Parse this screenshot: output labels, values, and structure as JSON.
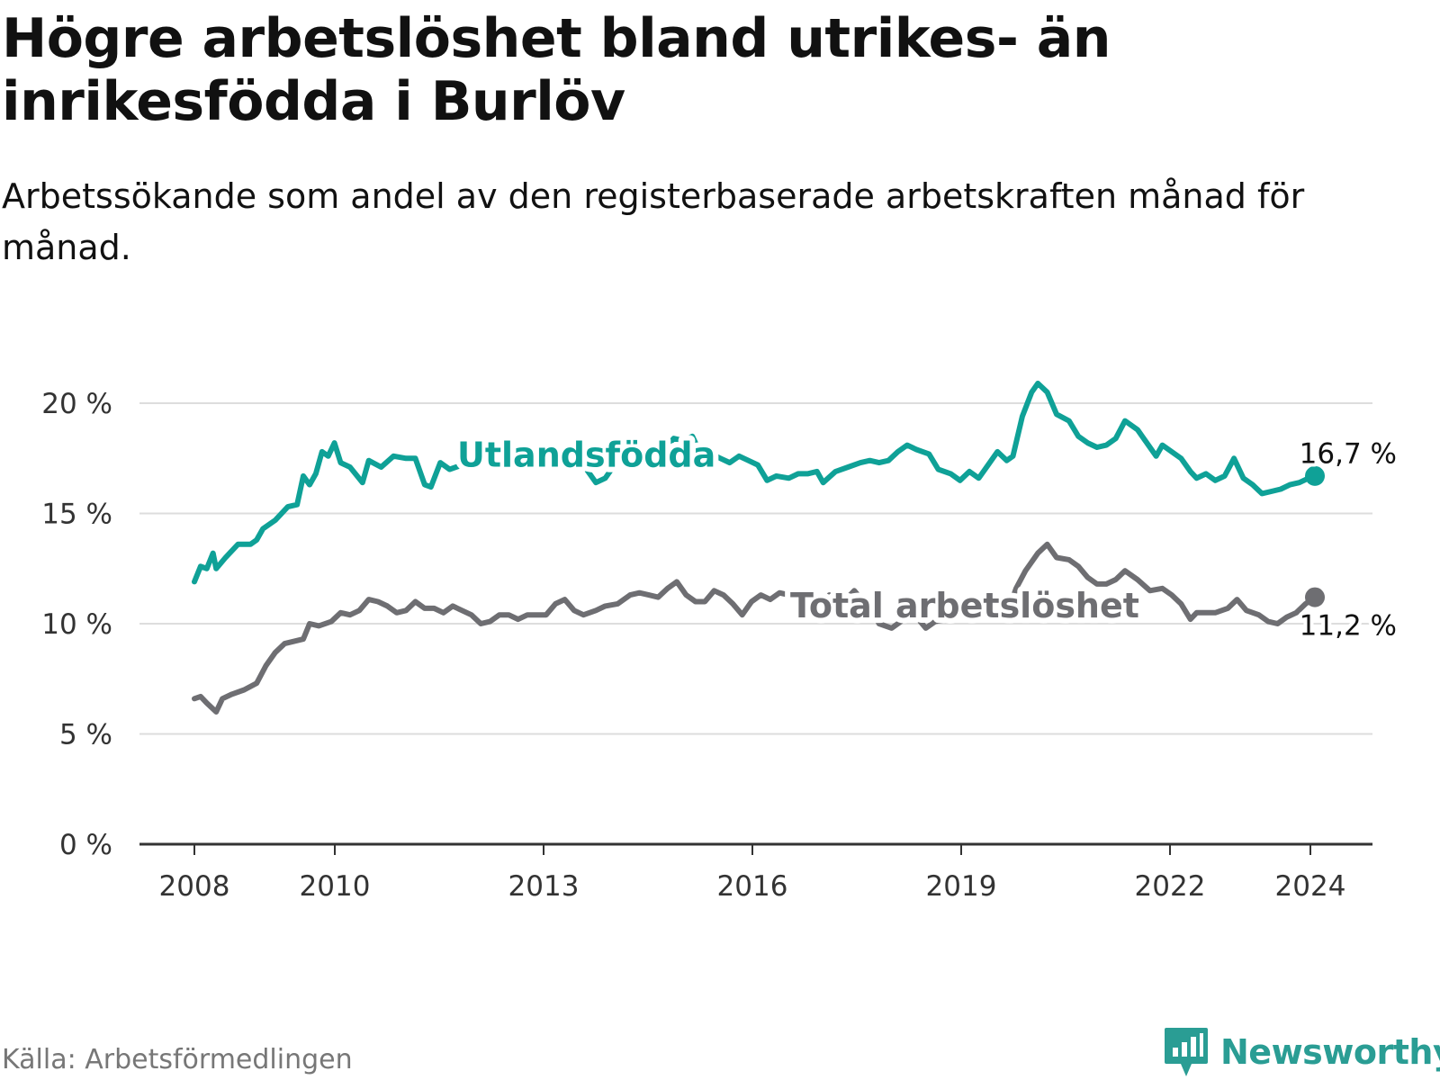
{
  "title": "Högre arbetslöshet bland utrikes- än inrikesfödda i Burlöv",
  "subtitle": "Arbetssökande som andel av den registerbaserade arbetskraften månad för månad.",
  "source": "Källa: Arbetsförmedlingen",
  "brand": "Newsworthy",
  "logo_icon": "bar-chart-speech-bubble-icon",
  "colors": {
    "utlandsfodda": "#0fa197",
    "total": "#6e6e72",
    "grid": "#dddddd",
    "axis": "#333333",
    "brand": "#2a9d94"
  },
  "chart_data": {
    "type": "line",
    "y_tick_labels": [
      "0 %",
      "5 %",
      "10 %",
      "15 %",
      "20 %"
    ],
    "y_ticks": [
      0,
      5,
      10,
      15,
      20
    ],
    "ylim": [
      0,
      20
    ],
    "x_tick_labels": [
      "2008",
      "2010",
      "2013",
      "2016",
      "2019",
      "2022",
      "2024"
    ],
    "x_ticks": [
      2008,
      2010,
      2013,
      2016,
      2019,
      2022,
      2024
    ],
    "xlim": [
      2007.2,
      2025.0
    ],
    "series": [
      {
        "name": "Utlandsfödda",
        "color_key": "utlandsfodda",
        "end_label": "16,7 %",
        "points": [
          [
            2008.0,
            11.9
          ],
          [
            2008.1,
            12.6
          ],
          [
            2008.2,
            12.5
          ],
          [
            2008.3,
            13.2
          ],
          [
            2008.35,
            12.5
          ],
          [
            2008.5,
            13.0
          ],
          [
            2008.7,
            13.6
          ],
          [
            2008.9,
            13.6
          ],
          [
            2009.0,
            13.8
          ],
          [
            2009.1,
            14.3
          ],
          [
            2009.3,
            14.7
          ],
          [
            2009.5,
            15.3
          ],
          [
            2009.65,
            15.4
          ],
          [
            2009.75,
            16.7
          ],
          [
            2009.85,
            16.3
          ],
          [
            2009.95,
            16.8
          ],
          [
            2010.05,
            17.8
          ],
          [
            2010.15,
            17.6
          ],
          [
            2010.25,
            18.2
          ],
          [
            2010.35,
            17.3
          ],
          [
            2010.5,
            17.1
          ],
          [
            2010.7,
            16.4
          ],
          [
            2010.8,
            17.4
          ],
          [
            2011.0,
            17.1
          ],
          [
            2011.2,
            17.6
          ],
          [
            2011.4,
            17.5
          ],
          [
            2011.55,
            17.5
          ],
          [
            2011.7,
            16.3
          ],
          [
            2011.8,
            16.2
          ],
          [
            2011.95,
            17.3
          ],
          [
            2012.1,
            17.0
          ],
          [
            2012.3,
            17.2
          ],
          [
            2012.5,
            17.2
          ],
          [
            2012.7,
            17.4
          ],
          [
            2012.9,
            17.6
          ],
          [
            2013.1,
            17.3
          ],
          [
            2013.3,
            17.3
          ],
          [
            2013.5,
            17.5
          ],
          [
            2013.7,
            17.6
          ],
          [
            2013.9,
            17.4
          ],
          [
            2014.1,
            17.3
          ],
          [
            2014.3,
            17.0
          ],
          [
            2014.45,
            16.4
          ],
          [
            2014.6,
            16.6
          ],
          [
            2014.8,
            17.4
          ],
          [
            2015.0,
            17.6
          ],
          [
            2015.2,
            17.4
          ],
          [
            2015.4,
            17.2
          ],
          [
            2015.55,
            17.9
          ],
          [
            2015.7,
            18.4
          ],
          [
            2015.85,
            18.3
          ],
          [
            2016.0,
            18.5
          ],
          [
            2016.15,
            17.6
          ],
          [
            2016.3,
            17.7
          ],
          [
            2016.45,
            17.5
          ],
          [
            2016.6,
            17.3
          ],
          [
            2016.75,
            17.6
          ],
          [
            2016.9,
            17.4
          ],
          [
            2017.05,
            17.2
          ],
          [
            2017.2,
            16.5
          ],
          [
            2017.35,
            16.7
          ],
          [
            2017.55,
            16.6
          ],
          [
            2017.7,
            16.8
          ],
          [
            2017.85,
            16.8
          ],
          [
            2018.0,
            16.9
          ],
          [
            2018.1,
            16.4
          ],
          [
            2018.3,
            16.9
          ],
          [
            2018.5,
            17.1
          ],
          [
            2018.7,
            17.3
          ],
          [
            2018.85,
            17.4
          ],
          [
            2019.0,
            17.3
          ],
          [
            2019.15,
            17.4
          ],
          [
            2019.3,
            17.8
          ],
          [
            2019.45,
            18.1
          ],
          [
            2019.6,
            17.9
          ],
          [
            2019.8,
            17.7
          ],
          [
            2019.95,
            17.0
          ],
          [
            2020.15,
            16.8
          ],
          [
            2020.3,
            16.5
          ],
          [
            2020.45,
            16.9
          ],
          [
            2020.6,
            16.6
          ],
          [
            2020.75,
            17.2
          ],
          [
            2020.9,
            17.8
          ],
          [
            2021.05,
            17.4
          ],
          [
            2021.15,
            17.6
          ],
          [
            2021.3,
            19.4
          ],
          [
            2021.45,
            20.5
          ],
          [
            2021.55,
            20.9
          ],
          [
            2021.7,
            20.5
          ],
          [
            2021.85,
            19.5
          ],
          [
            2022.05,
            19.2
          ],
          [
            2022.2,
            18.5
          ],
          [
            2022.35,
            18.2
          ],
          [
            2022.5,
            18.0
          ],
          [
            2022.65,
            18.1
          ],
          [
            2022.8,
            18.4
          ],
          [
            2022.95,
            19.2
          ],
          [
            2023.15,
            18.8
          ],
          [
            2023.35,
            18.0
          ],
          [
            2023.45,
            17.6
          ],
          [
            2023.55,
            18.1
          ],
          [
            2023.7,
            17.8
          ],
          [
            2023.85,
            17.5
          ],
          [
            2024.0,
            16.9
          ],
          [
            2024.1,
            16.6
          ],
          [
            2024.25,
            16.8
          ],
          [
            2024.4,
            16.5
          ],
          [
            2024.55,
            16.7
          ],
          [
            2024.7,
            17.5
          ],
          [
            2024.85,
            16.6
          ],
          [
            2025.0,
            16.3
          ],
          [
            2025.15,
            15.9
          ],
          [
            2025.3,
            16.0
          ],
          [
            2025.45,
            16.1
          ],
          [
            2025.6,
            16.3
          ],
          [
            2025.75,
            16.4
          ],
          [
            2025.9,
            16.6
          ],
          [
            2026.0,
            16.7
          ]
        ]
      },
      {
        "name": "Total arbetslöshet",
        "color_key": "total",
        "end_label": "11,2 %",
        "points": [
          [
            2008.0,
            6.6
          ],
          [
            2008.1,
            6.7
          ],
          [
            2008.2,
            6.4
          ],
          [
            2008.35,
            6.0
          ],
          [
            2008.45,
            6.6
          ],
          [
            2008.6,
            6.8
          ],
          [
            2008.8,
            7.0
          ],
          [
            2009.0,
            7.3
          ],
          [
            2009.15,
            8.1
          ],
          [
            2009.3,
            8.7
          ],
          [
            2009.45,
            9.1
          ],
          [
            2009.6,
            9.2
          ],
          [
            2009.75,
            9.3
          ],
          [
            2009.85,
            10.0
          ],
          [
            2010.0,
            9.9
          ],
          [
            2010.2,
            10.1
          ],
          [
            2010.35,
            10.5
          ],
          [
            2010.5,
            10.4
          ],
          [
            2010.65,
            10.6
          ],
          [
            2010.8,
            11.1
          ],
          [
            2010.95,
            11.0
          ],
          [
            2011.1,
            10.8
          ],
          [
            2011.25,
            10.5
          ],
          [
            2011.4,
            10.6
          ],
          [
            2011.55,
            11.0
          ],
          [
            2011.7,
            10.7
          ],
          [
            2011.85,
            10.7
          ],
          [
            2012.0,
            10.5
          ],
          [
            2012.15,
            10.8
          ],
          [
            2012.3,
            10.6
          ],
          [
            2012.45,
            10.4
          ],
          [
            2012.6,
            10.0
          ],
          [
            2012.75,
            10.1
          ],
          [
            2012.9,
            10.4
          ],
          [
            2013.05,
            10.4
          ],
          [
            2013.2,
            10.2
          ],
          [
            2013.35,
            10.4
          ],
          [
            2013.5,
            10.4
          ],
          [
            2013.65,
            10.4
          ],
          [
            2013.8,
            10.9
          ],
          [
            2013.95,
            11.1
          ],
          [
            2014.1,
            10.6
          ],
          [
            2014.25,
            10.4
          ],
          [
            2014.45,
            10.6
          ],
          [
            2014.6,
            10.8
          ],
          [
            2014.8,
            10.9
          ],
          [
            2015.0,
            11.3
          ],
          [
            2015.15,
            11.4
          ],
          [
            2015.3,
            11.3
          ],
          [
            2015.45,
            11.2
          ],
          [
            2015.6,
            11.6
          ],
          [
            2015.75,
            11.9
          ],
          [
            2015.9,
            11.3
          ],
          [
            2016.05,
            11.0
          ],
          [
            2016.2,
            11.0
          ],
          [
            2016.35,
            11.5
          ],
          [
            2016.5,
            11.3
          ],
          [
            2016.65,
            10.9
          ],
          [
            2016.8,
            10.4
          ],
          [
            2016.95,
            11.0
          ],
          [
            2017.1,
            11.3
          ],
          [
            2017.25,
            11.1
          ],
          [
            2017.4,
            11.4
          ],
          [
            2017.55,
            11.3
          ],
          [
            2017.7,
            11.4
          ],
          [
            2017.85,
            11.0
          ],
          [
            2018.0,
            10.7
          ],
          [
            2018.2,
            11.3
          ],
          [
            2018.35,
            11.3
          ],
          [
            2018.5,
            11.2
          ],
          [
            2018.6,
            11.5
          ],
          [
            2018.75,
            11.0
          ],
          [
            2018.9,
            10.5
          ],
          [
            2019.0,
            10.0
          ],
          [
            2019.2,
            9.8
          ],
          [
            2019.4,
            10.2
          ],
          [
            2019.6,
            10.3
          ],
          [
            2019.75,
            9.8
          ],
          [
            2019.9,
            10.1
          ],
          [
            2020.1,
            10.2
          ],
          [
            2020.3,
            10.4
          ],
          [
            2020.5,
            10.3
          ],
          [
            2020.7,
            10.6
          ],
          [
            2020.85,
            10.2
          ],
          [
            2020.95,
            10.4
          ],
          [
            2021.1,
            10.8
          ],
          [
            2021.2,
            11.6
          ],
          [
            2021.35,
            12.4
          ],
          [
            2021.55,
            13.2
          ],
          [
            2021.7,
            13.6
          ],
          [
            2021.85,
            13.0
          ],
          [
            2022.05,
            12.9
          ],
          [
            2022.2,
            12.6
          ],
          [
            2022.35,
            12.1
          ],
          [
            2022.5,
            11.8
          ],
          [
            2022.65,
            11.8
          ],
          [
            2022.8,
            12.0
          ],
          [
            2022.95,
            12.4
          ],
          [
            2023.15,
            12.0
          ],
          [
            2023.35,
            11.5
          ],
          [
            2023.55,
            11.6
          ],
          [
            2023.7,
            11.3
          ],
          [
            2023.85,
            10.9
          ],
          [
            2024.0,
            10.2
          ],
          [
            2024.1,
            10.5
          ],
          [
            2024.25,
            10.5
          ],
          [
            2024.4,
            10.5
          ],
          [
            2024.6,
            10.7
          ],
          [
            2024.75,
            11.1
          ],
          [
            2024.9,
            10.6
          ],
          [
            2025.1,
            10.4
          ],
          [
            2025.25,
            10.1
          ],
          [
            2025.4,
            10.0
          ],
          [
            2025.55,
            10.3
          ],
          [
            2025.7,
            10.5
          ],
          [
            2025.85,
            10.9
          ],
          [
            2026.0,
            11.2
          ]
        ]
      }
    ]
  }
}
